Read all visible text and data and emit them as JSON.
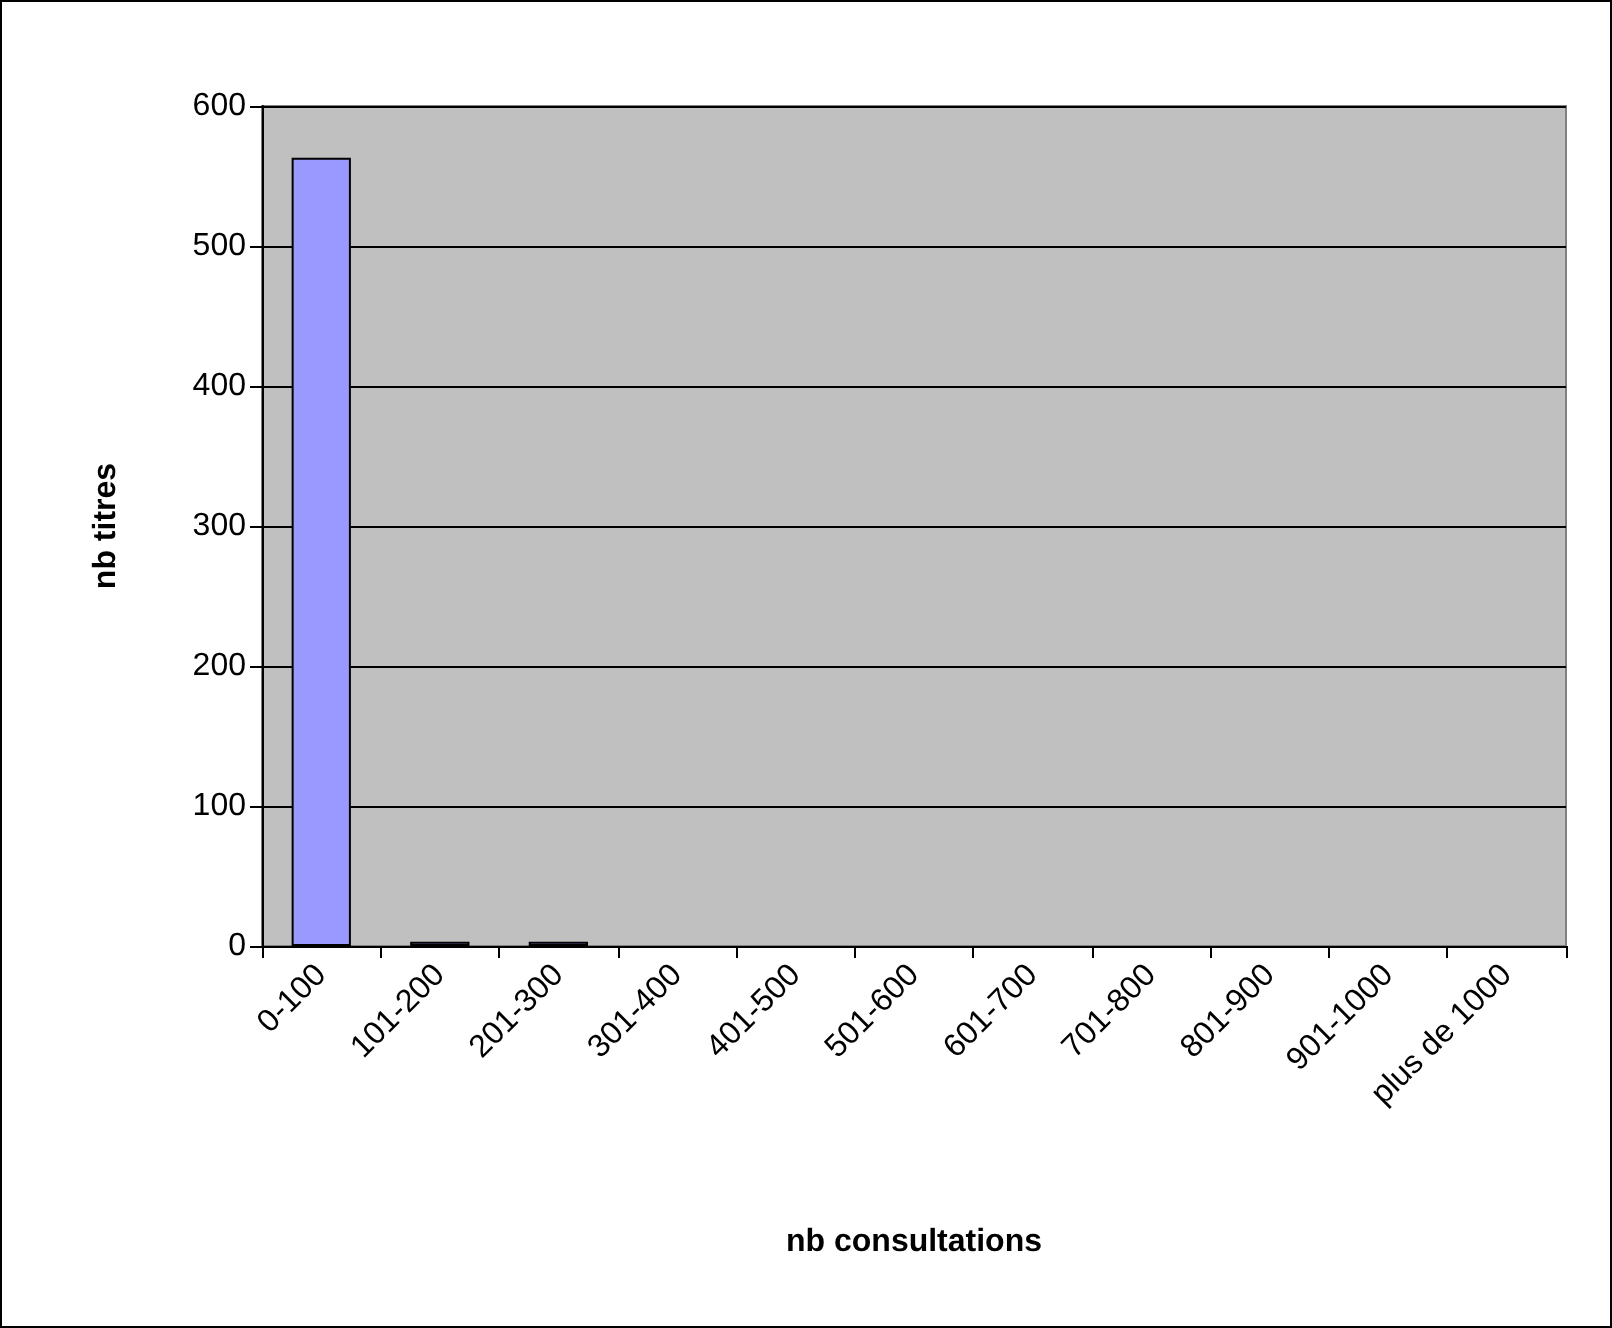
{
  "chart_data": {
    "type": "bar",
    "xlabel": "nb consultations",
    "ylabel": "nb titres",
    "categories": [
      "0-100",
      "101-200",
      "201-300",
      "301-400",
      "401-500",
      "501-600",
      "601-700",
      "701-800",
      "801-900",
      "901-1000",
      "plus de 1000"
    ],
    "values": [
      563,
      3,
      3,
      0,
      0,
      0,
      0,
      0,
      0,
      0,
      0
    ],
    "color": "#9999ff",
    "ylim": [
      0,
      600
    ],
    "yticks": [
      0,
      100,
      200,
      300,
      400,
      500,
      600
    ],
    "grid": "y"
  }
}
